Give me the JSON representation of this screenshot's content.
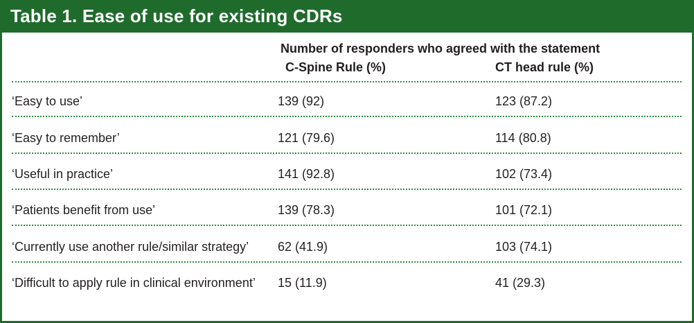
{
  "title": "Table 1. Ease of use for existing CDRs",
  "header": {
    "group_label": "Number of responders who agreed with the statement",
    "columns": [
      "C-Spine Rule (%)",
      "CT head rule (%)"
    ]
  },
  "rows": [
    {
      "label": "‘Easy to use’",
      "c_spine": "139 (92)",
      "ct_head": "123 (87.2)"
    },
    {
      "label": "‘Easy to remember’",
      "c_spine": "121 (79.6)",
      "ct_head": "114 (80.8)"
    },
    {
      "label": "‘Useful in practice’",
      "c_spine": "141 (92.8)",
      "ct_head": "102 (73.4)"
    },
    {
      "label": "‘Patients benefit from use’",
      "c_spine": "139 (78.3)",
      "ct_head": "101 (72.1)"
    },
    {
      "label": "‘Currently use another rule/similar strategy’",
      "c_spine": "62 (41.9)",
      "ct_head": "103 (74.1)"
    },
    {
      "label": "‘Difficult to apply rule in clinical environment’",
      "c_spine": "15 (11.9)",
      "ct_head": "41 (29.3)"
    }
  ],
  "colors": {
    "title_bar": "#1f6b2c",
    "dotted_rule": "#2e8b3c",
    "text": "#231f20"
  }
}
